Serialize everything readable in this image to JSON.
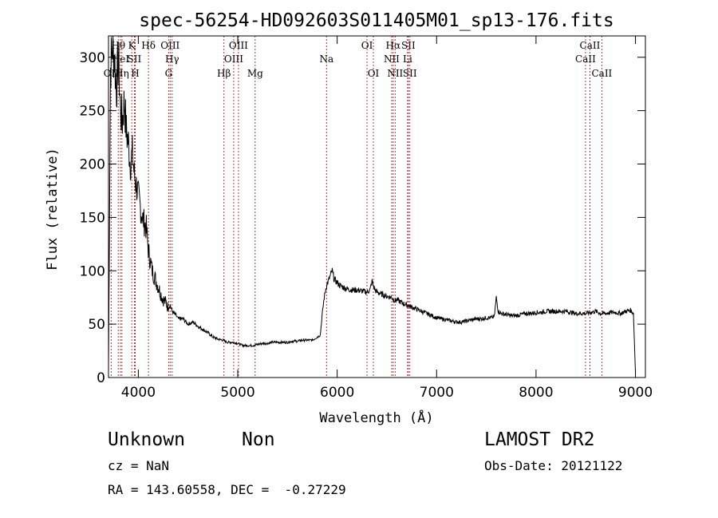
{
  "chart_data": {
    "type": "line",
    "title": "spec-56254-HD092603S011405M01_sp13-176.fits",
    "xlabel": "Wavelength (Å)",
    "ylabel": "Flux (relative)",
    "xlim": [
      3700,
      9100
    ],
    "ylim": [
      0,
      320
    ],
    "xticks": [
      4000,
      5000,
      6000,
      7000,
      8000,
      9000
    ],
    "yticks": [
      0,
      50,
      100,
      150,
      200,
      250,
      300
    ],
    "grid": false,
    "series": [
      {
        "color": "#000000",
        "x": [
          3700,
          3720,
          3740,
          3760,
          3780,
          3800,
          3820,
          3840,
          3860,
          3880,
          3900,
          3920,
          3940,
          3960,
          3980,
          4000,
          4020,
          4040,
          4060,
          4080,
          4100,
          4120,
          4140,
          4160,
          4180,
          4200,
          4220,
          4240,
          4260,
          4280,
          4300,
          4320,
          4340,
          4360,
          4380,
          4400,
          4450,
          4500,
          4550,
          4600,
          4650,
          4700,
          4750,
          4800,
          4850,
          4900,
          4950,
          5000,
          5050,
          5100,
          5150,
          5200,
          5250,
          5300,
          5350,
          5400,
          5450,
          5500,
          5550,
          5600,
          5650,
          5700,
          5750,
          5800,
          5830,
          5850,
          5870,
          5890,
          5910,
          5930,
          5950,
          5970,
          5990,
          6010,
          6030,
          6050,
          6100,
          6150,
          6200,
          6250,
          6300,
          6330,
          6350,
          6380,
          6400,
          6450,
          6500,
          6550,
          6580,
          6600,
          6650,
          6700,
          6750,
          6800,
          6850,
          6900,
          6950,
          7000,
          7050,
          7100,
          7150,
          7200,
          7250,
          7300,
          7350,
          7400,
          7450,
          7500,
          7550,
          7580,
          7600,
          7620,
          7650,
          7700,
          7750,
          7800,
          7850,
          7900,
          7950,
          8000,
          8050,
          8100,
          8150,
          8200,
          8250,
          8300,
          8350,
          8400,
          8450,
          8500,
          8550,
          8600,
          8650,
          8700,
          8750,
          8800,
          8850,
          8900,
          8950,
          8980,
          9000
        ],
        "y": [
          10,
          290,
          310,
          300,
          270,
          300,
          250,
          240,
          260,
          230,
          220,
          200,
          210,
          190,
          180,
          170,
          160,
          150,
          145,
          140,
          120,
          110,
          100,
          95,
          90,
          85,
          80,
          75,
          72,
          70,
          65,
          68,
          62,
          60,
          58,
          55,
          55,
          50,
          52,
          48,
          45,
          42,
          38,
          36,
          35,
          33,
          33,
          32,
          30,
          30,
          30,
          31,
          32,
          32,
          33,
          33,
          33,
          33,
          34,
          34,
          35,
          35,
          35,
          38,
          40,
          60,
          75,
          85,
          90,
          95,
          100,
          92,
          90,
          88,
          86,
          85,
          83,
          82,
          82,
          81,
          80,
          82,
          90,
          82,
          80,
          78,
          76,
          75,
          72,
          73,
          70,
          68,
          66,
          64,
          62,
          60,
          58,
          56,
          55,
          54,
          53,
          52,
          52,
          53,
          54,
          55,
          55,
          56,
          56,
          57,
          75,
          62,
          60,
          59,
          58,
          58,
          59,
          60,
          60,
          61,
          61,
          62,
          62,
          62,
          62,
          62,
          61,
          60,
          60,
          60,
          61,
          62,
          60,
          60,
          61,
          61,
          60,
          62,
          63,
          60,
          5
        ]
      }
    ],
    "lines": [
      {
        "label": "OII",
        "x": 3727,
        "row": 3
      },
      {
        "label": "Hθ",
        "x": 3798,
        "row": 1
      },
      {
        "label": "HeI",
        "x": 3820,
        "row": 2
      },
      {
        "label": "Hη",
        "x": 3835,
        "row": 3
      },
      {
        "label": "K",
        "x": 3934,
        "row": 1
      },
      {
        "label": "SII",
        "x": 3960,
        "row": 2
      },
      {
        "label": "H",
        "x": 3969,
        "row": 3
      },
      {
        "label": "Hδ",
        "x": 4102,
        "row": 1
      },
      {
        "label": "OIII",
        "x": 4320,
        "row": 1
      },
      {
        "label": "Hγ",
        "x": 4340,
        "row": 2
      },
      {
        "label": "G",
        "x": 4305,
        "row": 3
      },
      {
        "label": "Hβ",
        "x": 4861,
        "row": 3
      },
      {
        "label": "OIII",
        "x": 4959,
        "row": 2
      },
      {
        "label": "OIII",
        "x": 5007,
        "row": 1
      },
      {
        "label": "Mg",
        "x": 5175,
        "row": 3
      },
      {
        "label": "Na",
        "x": 5893,
        "row": 2
      },
      {
        "label": "OI",
        "x": 6300,
        "row": 1
      },
      {
        "label": "OI",
        "x": 6364,
        "row": 3
      },
      {
        "label": "Hα",
        "x": 6563,
        "row": 1
      },
      {
        "label": "NII",
        "x": 6548,
        "row": 2
      },
      {
        "label": "NII",
        "x": 6583,
        "row": 3
      },
      {
        "label": "SII",
        "x": 6716,
        "row": 1
      },
      {
        "label": "Li",
        "x": 6708,
        "row": 2
      },
      {
        "label": "SII",
        "x": 6731,
        "row": 3
      },
      {
        "label": "CaII",
        "x": 8542,
        "row": 1
      },
      {
        "label": "CaII",
        "x": 8498,
        "row": 2
      },
      {
        "label": "CaII",
        "x": 8662,
        "row": 3
      }
    ]
  },
  "footer": {
    "class_label": "Unknown",
    "subclass_label": "Non",
    "survey": "LAMOST DR2",
    "cz": "cz = NaN",
    "obs_date": "Obs-Date: 20121122",
    "coords": "RA = 143.60558, DEC =  -0.27229"
  }
}
